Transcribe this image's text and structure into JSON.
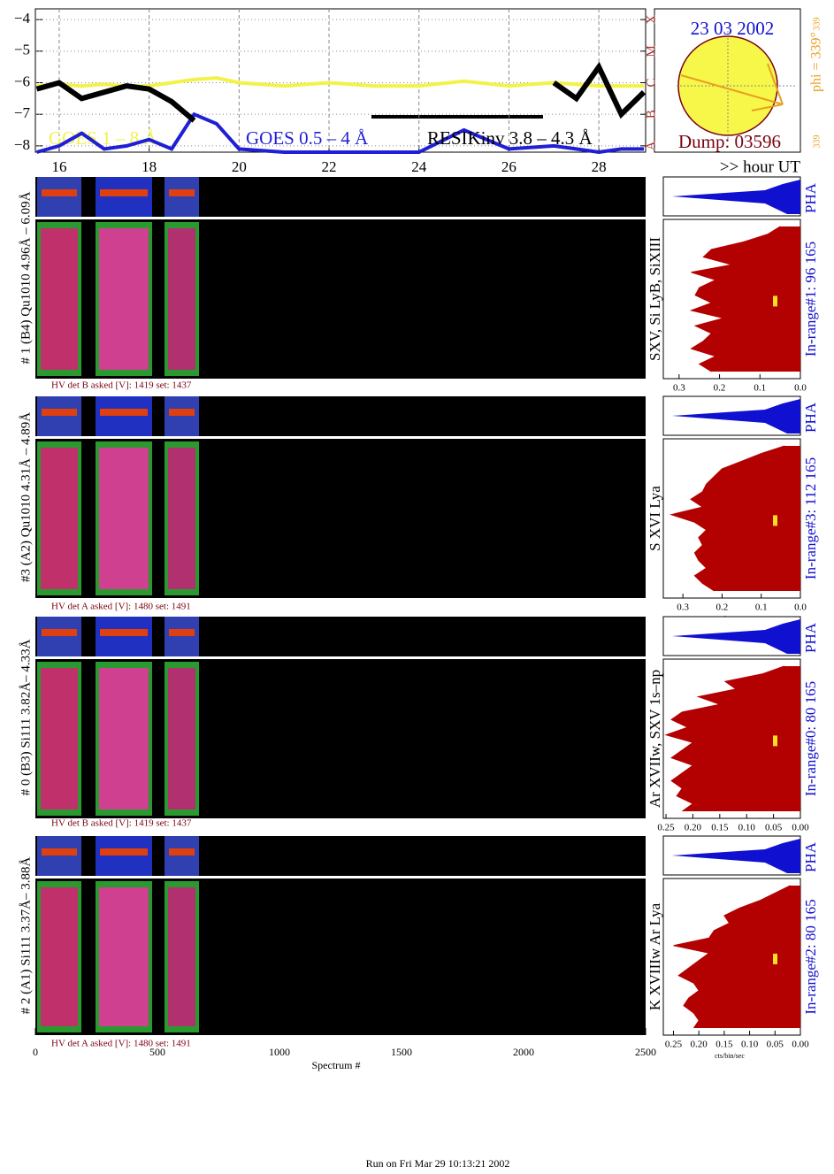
{
  "chart_data": [
    {
      "type": "line",
      "xlabel": ">> hour UT",
      "x": [
        15.5,
        16,
        16.5,
        17,
        17.5,
        18,
        18.5,
        19,
        19.5,
        20,
        21,
        22,
        23,
        24,
        25,
        26,
        27,
        27.5,
        28,
        28.5,
        29
      ],
      "series": [
        {
          "name": "GOES 1 – 8 Å",
          "color": "#f2f24a",
          "values": [
            -6.1,
            -6.05,
            -6.1,
            -6.05,
            -6.1,
            -6.1,
            -6.0,
            -5.9,
            -5.85,
            -6.0,
            -6.1,
            -6.0,
            -6.1,
            -6.1,
            -5.95,
            -6.1,
            -6.0,
            -6.05,
            -6.1,
            -6.1,
            -6.1
          ]
        },
        {
          "name": "GOES 0.5 – 4 Å",
          "color": "#1f1fd6",
          "values": [
            -8.2,
            -8.0,
            -7.6,
            -8.1,
            -8.0,
            -7.8,
            -8.1,
            -7.0,
            -7.3,
            -8.1,
            -8.2,
            -8.2,
            -8.2,
            -8.2,
            -7.5,
            -8.1,
            -8.0,
            -8.1,
            -8.2,
            -8.1,
            -8.1
          ]
        },
        {
          "name": "RESIKinv 3.8 – 4.3 Å",
          "color": "#000000",
          "values": [
            -6.2,
            -6.0,
            -6.5,
            -6.3,
            -6.1,
            -6.2,
            -6.6,
            -7.2,
            null,
            null,
            null,
            null,
            null,
            null,
            null,
            null,
            -6.0,
            -6.5,
            -5.5,
            -7.0,
            -6.3
          ]
        }
      ],
      "xlim": [
        15.47,
        29.04
      ],
      "xticks": [
        16,
        18,
        20,
        22,
        24,
        26,
        28
      ],
      "ylim": [
        -8.2,
        -3.66
      ],
      "yticks": [
        {
          "value": -8,
          "label": "−8"
        },
        {
          "value": -7,
          "label": "−7"
        },
        {
          "value": -6,
          "label": "−6"
        },
        {
          "value": -5,
          "label": "−5"
        },
        {
          "value": -4,
          "label": "−4"
        }
      ],
      "class_ticks": [
        {
          "value": -8,
          "label": "A"
        },
        {
          "value": -7,
          "label": "B"
        },
        {
          "value": -6,
          "label": "C"
        },
        {
          "value": -5,
          "label": "M"
        },
        {
          "value": -4,
          "label": "X"
        }
      ],
      "grid": true
    },
    {
      "type": "area",
      "xlabel": "cts/bin/sec",
      "color": "#b30000",
      "xlim": [
        0.339,
        0
      ],
      "xticks": [
        0.3,
        0.2,
        0.1,
        {
          "value": 0,
          "label": "0.0"
        }
      ],
      "values": [
        0.05,
        0.08,
        0.14,
        0.22,
        0.24,
        0.17,
        0.27,
        0.21,
        0.25,
        0.26,
        0.22,
        0.27,
        0.19,
        0.26,
        0.22,
        0.24,
        0.27,
        0.21,
        0.25,
        0.22
      ]
    },
    {
      "type": "area",
      "xlabel": "cts/bin/sec",
      "color": "#b30000",
      "xlim": [
        0.35,
        0
      ],
      "xticks": [
        0.3,
        0.2,
        0.1,
        {
          "value": 0,
          "label": "0.0"
        }
      ],
      "values": [
        0.04,
        0.1,
        0.15,
        0.2,
        0.22,
        0.24,
        0.25,
        0.28,
        0.25,
        0.33,
        0.27,
        0.24,
        0.26,
        0.25,
        0.27,
        0.26,
        0.24,
        0.27,
        0.25,
        0.22
      ]
    },
    {
      "type": "area",
      "xlabel": "cts/bin/sec",
      "color": "#b30000",
      "xlim": [
        0.255,
        0
      ],
      "xticks": [
        0.25,
        {
          "value": 0.2,
          "label": "0.20"
        },
        0.15,
        {
          "value": 0.1,
          "label": "0.10"
        },
        0.05,
        {
          "value": 0,
          "label": "0.00"
        }
      ],
      "values": [
        0.03,
        0.07,
        0.14,
        0.12,
        0.19,
        0.15,
        0.22,
        0.24,
        0.21,
        0.25,
        0.2,
        0.22,
        0.24,
        0.2,
        0.22,
        0.24,
        0.22,
        0.23,
        0.2,
        0.22
      ]
    },
    {
      "type": "area",
      "xlabel": "cts/bin/sec",
      "color": "#b30000",
      "xlim": [
        0.27,
        0
      ],
      "xticks": [
        0.25,
        {
          "value": 0.2,
          "label": "0.20"
        },
        0.15,
        {
          "value": 0.1,
          "label": "0.10"
        },
        0.05,
        {
          "value": 0,
          "label": "0.00"
        }
      ],
      "values": [
        0.02,
        0.05,
        0.08,
        0.12,
        0.15,
        0.14,
        0.17,
        0.18,
        0.25,
        0.18,
        0.2,
        0.22,
        0.24,
        0.21,
        0.2,
        0.22,
        0.23,
        0.21,
        0.2,
        0.21
      ]
    }
  ],
  "sun": {
    "date": "23 03 2002",
    "dump": "Dump: 03596",
    "phi": "phi = 339°",
    "phi_sup": "339",
    "corner": "339"
  },
  "panels": [
    {
      "label": "# 1 (B4) Qu1010 4.96Å – 6.09Å",
      "hv": "HV det B asked [V]:  1419 set:  1437",
      "lines": "SXV, Si LyB, SiXIII",
      "pha": "PHA",
      "in_range": "In-range#1:   96 165"
    },
    {
      "label": "#3 (A2) Qu1010  4.31Å – 4.89Å",
      "hv": "HV det A asked [V]:  1480 set:  1491",
      "lines": "S XVI Lya",
      "pha": "PHA",
      "in_range": "In-range#3:   112 165"
    },
    {
      "label": "# 0 (B3) Si111  3.82Å– 4.33Å",
      "hv": "HV det B asked [V]:  1419 set:  1437",
      "lines": "Ar XVIIw,  SXV 1s–np",
      "pha": "PHA",
      "in_range": "In-range#0:   80 165"
    },
    {
      "label": "# 2 (A1) Si111  3.37Å– 3.88Å",
      "hv": "HV det A asked [V]:  1480 set:  1491",
      "lines": "K XVIIIw  Ar Lya",
      "pha": "PHA",
      "in_range": "In-range#2:   80 165"
    }
  ],
  "spectrum_axis": {
    "xlabel": "Spectrum #",
    "xlim": [
      0,
      2500
    ],
    "xticks": [
      0,
      500,
      1000,
      1500,
      2000,
      2500
    ]
  },
  "footer": "Run on Fri Mar 29 10:13:21 2002"
}
